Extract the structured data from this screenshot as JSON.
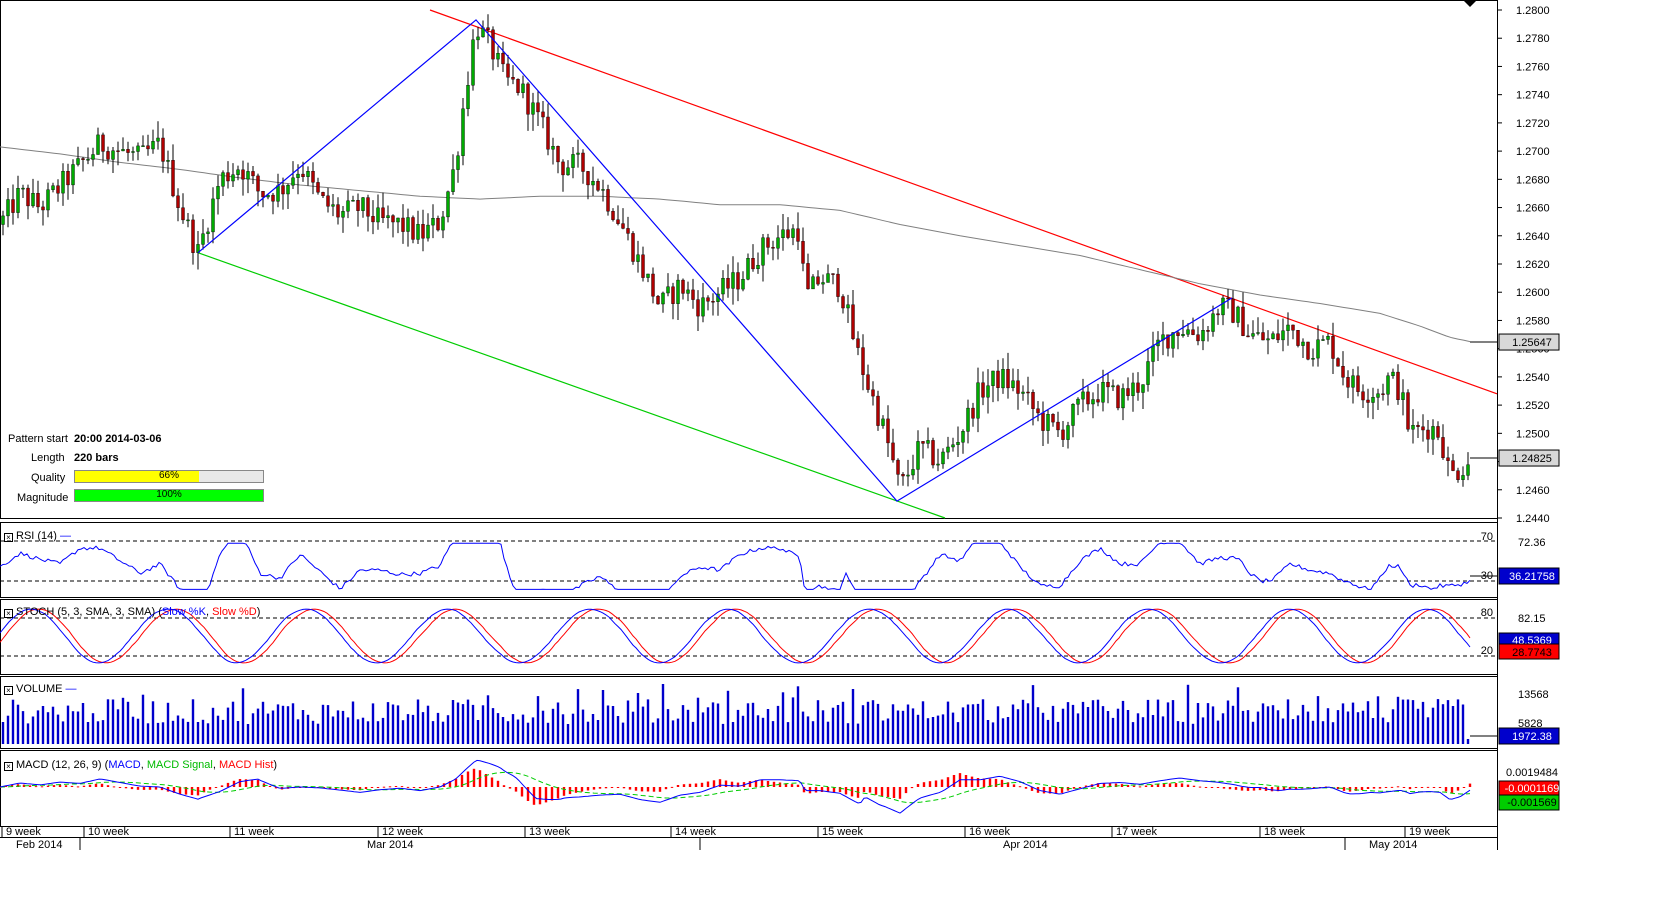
{
  "pattern_info": {
    "pattern_start_label": "Pattern start",
    "pattern_start_value": "20:00 2014-03-06",
    "length_label": "Length",
    "length_value": "220 bars",
    "quality_label": "Quality",
    "quality_value": "66%",
    "quality_fraction": 0.66,
    "magnitude_label": "Magnitude",
    "magnitude_value": "100%",
    "magnitude_fraction": 1.0
  },
  "colors": {
    "up_candle": "#00aa00",
    "down_candle": "#b00000",
    "resistance_line": "#ff0000",
    "support_line": "#00cc00",
    "zigzag": "#0000ff",
    "moving_average": "#808080",
    "indicator_line": "#0000ff",
    "signal_line": "#ff0000",
    "macd_signal": "#00cc00",
    "macd_hist": "#ff0000",
    "volume": "#0000cc",
    "quality_fill": "#ffff00",
    "magnitude_fill": "#00ff00"
  },
  "panels": {
    "rsi": {
      "title": "RSI (14)",
      "levels": [
        "70",
        "30"
      ],
      "axis_labels": [
        "72.36"
      ],
      "current_value": "36.21758"
    },
    "stoch": {
      "title": "STOCH (5, 3, SMA, 3, SMA)",
      "series_names": [
        "Slow %K",
        "Slow %D"
      ],
      "levels": [
        "80",
        "20"
      ],
      "axis_labels": [
        "82.15"
      ],
      "current_k": "48.5369",
      "current_d": "28.7743"
    },
    "volume": {
      "title": "VOLUME",
      "axis_labels": [
        "13568",
        "5828"
      ],
      "current_value": "1972.38"
    },
    "macd": {
      "title": "MACD (12, 26, 9)",
      "series_names": [
        "MACD",
        "MACD Signal",
        "MACD Hist"
      ],
      "axis_labels": [
        "0.0019484"
      ],
      "current_signal": "-0.0001169",
      "current_macd": "-0.001569"
    }
  },
  "chart_data": {
    "type": "candlestick",
    "symbol": "",
    "y_ticks": [
      "1.2800",
      "1.2780",
      "1.2760",
      "1.2740",
      "1.2720",
      "1.2700",
      "1.2680",
      "1.2660",
      "1.2640",
      "1.2620",
      "1.2600",
      "1.2580",
      "1.2560",
      "1.2540",
      "1.2520",
      "1.2500",
      "1.2480",
      "1.2460",
      "1.2440"
    ],
    "ylim": [
      1.244,
      1.28
    ],
    "current_price": "1.24825",
    "ma_value": "1.25647",
    "week_labels": [
      "9 week",
      "10 week",
      "11 week",
      "12 week",
      "13 week",
      "14 week",
      "15 week",
      "16 week",
      "17 week",
      "18 week",
      "19 week"
    ],
    "month_labels": [
      "Feb 2014",
      "Mar 2014",
      "Apr 2014",
      "May 2014"
    ],
    "price_path": [
      [
        0,
        1.2648
      ],
      [
        20,
        1.267
      ],
      [
        40,
        1.266
      ],
      [
        60,
        1.2675
      ],
      [
        80,
        1.269
      ],
      [
        100,
        1.2705
      ],
      [
        120,
        1.27
      ],
      [
        140,
        1.2695
      ],
      [
        160,
        1.2705
      ],
      [
        180,
        1.266
      ],
      [
        198,
        1.2628
      ],
      [
        220,
        1.268
      ],
      [
        240,
        1.269
      ],
      [
        260,
        1.267
      ],
      [
        280,
        1.2672
      ],
      [
        300,
        1.269
      ],
      [
        320,
        1.2665
      ],
      [
        340,
        1.2655
      ],
      [
        360,
        1.266
      ],
      [
        380,
        1.265
      ],
      [
        400,
        1.2648
      ],
      [
        420,
        1.264
      ],
      [
        440,
        1.265
      ],
      [
        455,
        1.269
      ],
      [
        465,
        1.274
      ],
      [
        476,
        1.279
      ],
      [
        490,
        1.2775
      ],
      [
        505,
        1.275
      ],
      [
        520,
        1.2745
      ],
      [
        540,
        1.272
      ],
      [
        560,
        1.269
      ],
      [
        580,
        1.269
      ],
      [
        600,
        1.2675
      ],
      [
        620,
        1.265
      ],
      [
        640,
        1.262
      ],
      [
        660,
        1.259
      ],
      [
        680,
        1.2605
      ],
      [
        700,
        1.259
      ],
      [
        720,
        1.26
      ],
      [
        740,
        1.261
      ],
      [
        760,
        1.263
      ],
      [
        780,
        1.264
      ],
      [
        800,
        1.2645
      ],
      [
        805,
        1.2595
      ],
      [
        820,
        1.261
      ],
      [
        840,
        1.2605
      ],
      [
        856,
        1.256
      ],
      [
        870,
        1.253
      ],
      [
        885,
        1.25
      ],
      [
        900,
        1.246
      ],
      [
        920,
        1.249
      ],
      [
        940,
        1.248
      ],
      [
        960,
        1.25
      ],
      [
        980,
        1.253
      ],
      [
        1000,
        1.254
      ],
      [
        1020,
        1.253
      ],
      [
        1040,
        1.251
      ],
      [
        1060,
        1.25
      ],
      [
        1080,
        1.252
      ],
      [
        1100,
        1.253
      ],
      [
        1120,
        1.2525
      ],
      [
        1140,
        1.2535
      ],
      [
        1160,
        1.2565
      ],
      [
        1180,
        1.2575
      ],
      [
        1200,
        1.257
      ],
      [
        1220,
        1.259
      ],
      [
        1235,
        1.2585
      ],
      [
        1250,
        1.257
      ],
      [
        1270,
        1.2565
      ],
      [
        1290,
        1.2575
      ],
      [
        1310,
        1.256
      ],
      [
        1330,
        1.2565
      ],
      [
        1345,
        1.254
      ],
      [
        1360,
        1.253
      ],
      [
        1380,
        1.253
      ],
      [
        1390,
        1.254
      ],
      [
        1400,
        1.253
      ],
      [
        1410,
        1.25
      ],
      [
        1430,
        1.2505
      ],
      [
        1440,
        1.25
      ],
      [
        1450,
        1.247
      ],
      [
        1460,
        1.2475
      ],
      [
        1470,
        1.2482
      ]
    ],
    "ma_path": [
      [
        0,
        1.2703
      ],
      [
        60,
        1.2698
      ],
      [
        120,
        1.2692
      ],
      [
        180,
        1.2687
      ],
      [
        240,
        1.2681
      ],
      [
        300,
        1.2676
      ],
      [
        360,
        1.2672
      ],
      [
        420,
        1.2668
      ],
      [
        480,
        1.2666
      ],
      [
        540,
        1.2668
      ],
      [
        600,
        1.2668
      ],
      [
        660,
        1.2666
      ],
      [
        720,
        1.2662
      ],
      [
        780,
        1.2662
      ],
      [
        840,
        1.2658
      ],
      [
        900,
        1.2648
      ],
      [
        960,
        1.264
      ],
      [
        1020,
        1.2633
      ],
      [
        1080,
        1.2626
      ],
      [
        1140,
        1.2616
      ],
      [
        1200,
        1.2606
      ],
      [
        1260,
        1.2598
      ],
      [
        1320,
        1.2592
      ],
      [
        1380,
        1.2585
      ],
      [
        1420,
        1.2576
      ],
      [
        1450,
        1.2568
      ],
      [
        1470,
        1.2565
      ]
    ],
    "trend_lines": [
      {
        "name": "resistance",
        "from": [
          430,
          1.28
        ],
        "to": [
          1497,
          1.2528
        ]
      },
      {
        "name": "support",
        "from": [
          198,
          1.2628
        ],
        "to": [
          945,
          1.244
        ]
      }
    ],
    "zigzag": [
      [
        198,
        1.2628
      ],
      [
        476,
        1.2793
      ],
      [
        897,
        1.2452
      ],
      [
        1232,
        1.2596
      ]
    ]
  }
}
